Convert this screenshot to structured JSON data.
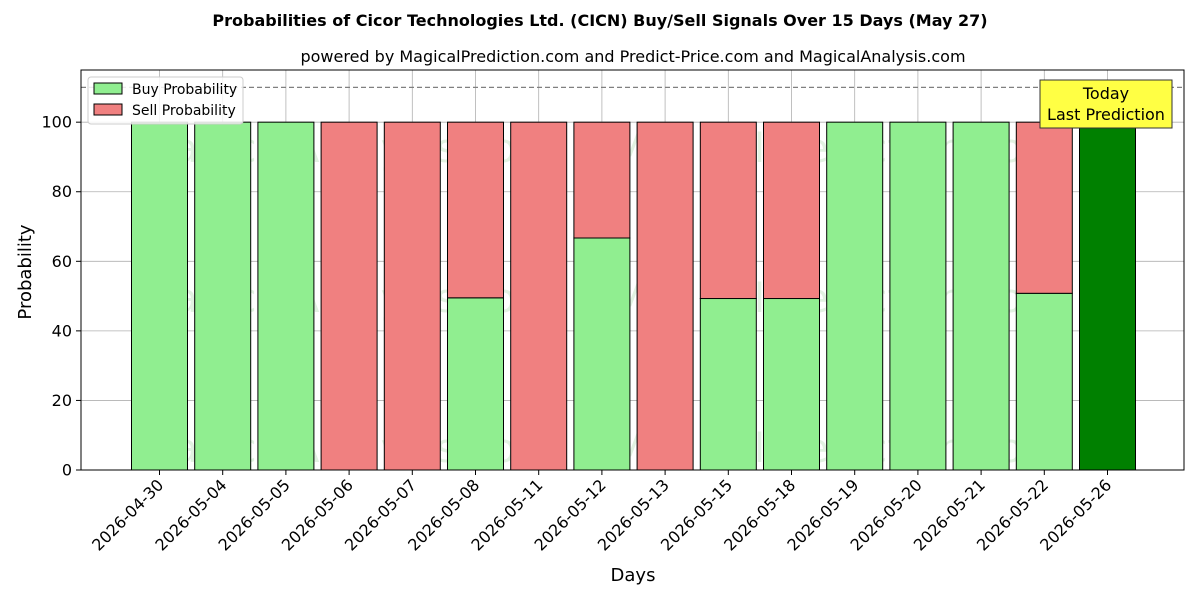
{
  "chart_data": {
    "type": "bar",
    "stacked": true,
    "title": "Probabilities of Cicor Technologies Ltd. (CICN) Buy/Sell Signals Over 15 Days (May 27)",
    "subtitle": "powered by MagicalPrediction.com and Predict-Price.com and MagicalAnalysis.com",
    "xlabel": "Days",
    "ylabel": "Probability",
    "ylim": [
      0,
      115
    ],
    "yticks": [
      0,
      20,
      40,
      60,
      80,
      100
    ],
    "grid": true,
    "legend_position": "top-left",
    "reference_line": 110,
    "categories": [
      "2026-04-30",
      "2026-05-04",
      "2026-05-05",
      "2026-05-06",
      "2026-05-07",
      "2026-05-08",
      "2026-05-11",
      "2026-05-12",
      "2026-05-13",
      "2026-05-15",
      "2026-05-18",
      "2026-05-19",
      "2026-05-20",
      "2026-05-21",
      "2026-05-22",
      "2026-05-26"
    ],
    "series": [
      {
        "name": "Buy Probability",
        "color": "#90ee90",
        "values": [
          100,
          100,
          100,
          0,
          0,
          49.5,
          0,
          66.7,
          0,
          49.3,
          49.3,
          100,
          100,
          100,
          50.8,
          100
        ]
      },
      {
        "name": "Sell Probability",
        "color": "#f08080",
        "values": [
          0,
          0,
          0,
          100,
          100,
          50.5,
          100,
          33.3,
          100,
          50.7,
          50.7,
          0,
          0,
          0,
          49.2,
          0
        ]
      }
    ],
    "highlight": {
      "index": 15,
      "color": "#008000"
    },
    "annotation": {
      "lines": [
        "Today",
        "Last Prediction"
      ],
      "color": "#ffff44"
    },
    "watermarks": [
      "MagicalAnalysis.com",
      "MagicalPrediction.com"
    ]
  }
}
